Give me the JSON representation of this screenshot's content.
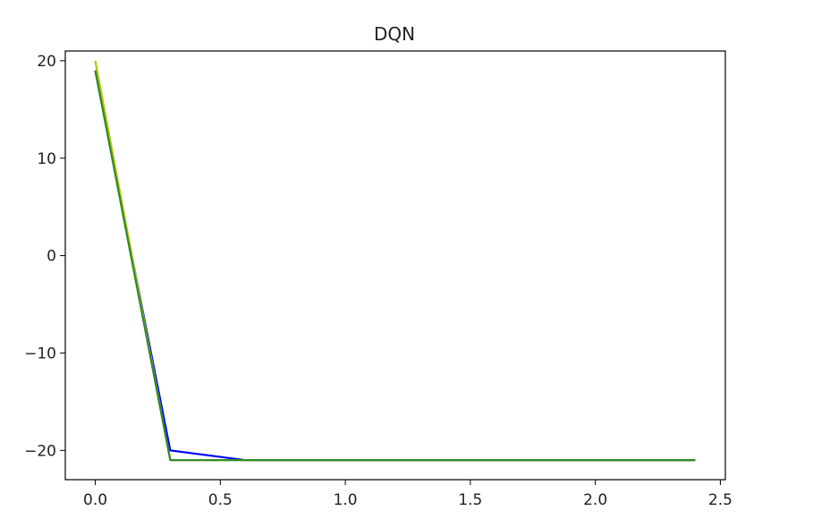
{
  "chart_data": {
    "type": "line",
    "title": "DQN",
    "xlabel": "",
    "ylabel": "",
    "xlim": [
      -0.12,
      2.52
    ],
    "ylim": [
      -23.0,
      21.0
    ],
    "xticks": [
      0.0,
      0.5,
      1.0,
      1.5,
      2.0,
      2.5
    ],
    "xtick_labels": [
      "0.0",
      "0.5",
      "1.0",
      "1.5",
      "2.0",
      "2.5"
    ],
    "yticks": [
      -20,
      -10,
      0,
      10,
      20
    ],
    "ytick_labels": [
      "−20",
      "−10",
      "0",
      "10",
      "20"
    ],
    "grid": false,
    "series": [
      {
        "color": "#0000ff",
        "x": [
          0.0,
          0.3,
          0.6,
          2.4
        ],
        "y": [
          19.0,
          -20.0,
          -21.0,
          -21.0
        ]
      },
      {
        "color": "#bfbf00",
        "x": [
          0.0,
          0.3,
          2.4
        ],
        "y": [
          20.0,
          -21.0,
          -21.0
        ]
      },
      {
        "color": "#2a8a2a",
        "x": [
          0.0,
          0.3,
          2.4
        ],
        "y": [
          19.0,
          -21.0,
          -21.0
        ]
      }
    ]
  }
}
